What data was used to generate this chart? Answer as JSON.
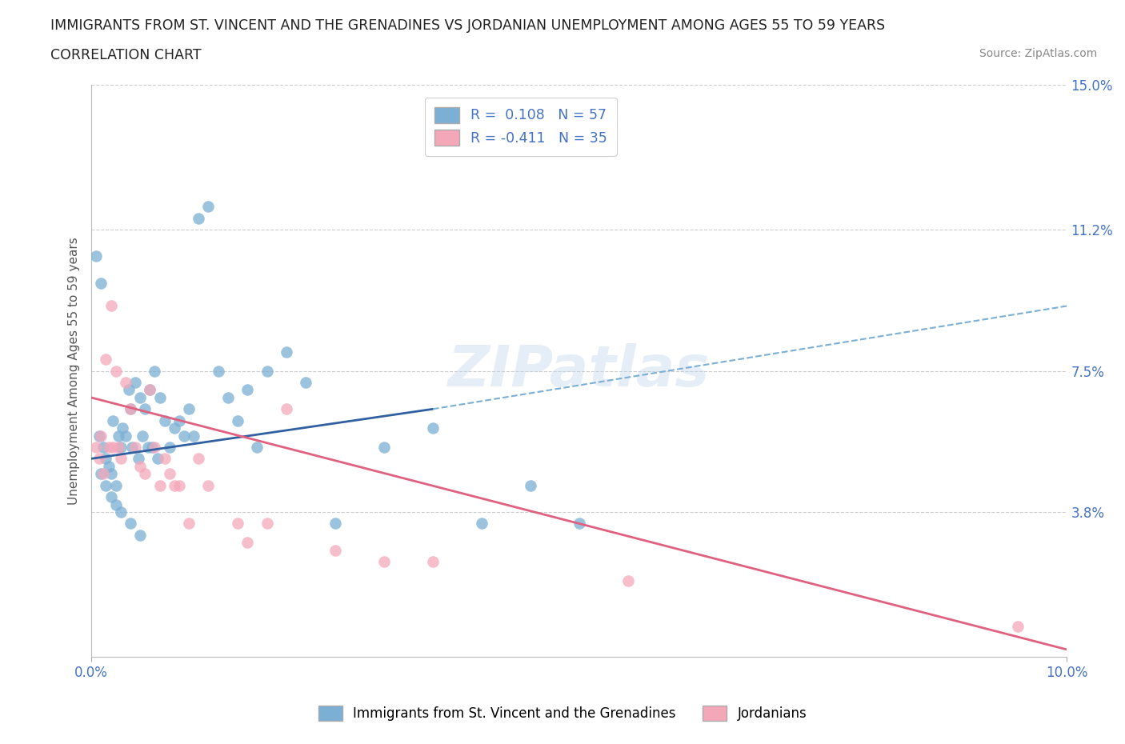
{
  "title_line1": "IMMIGRANTS FROM ST. VINCENT AND THE GRENADINES VS JORDANIAN UNEMPLOYMENT AMONG AGES 55 TO 59 YEARS",
  "title_line2": "CORRELATION CHART",
  "source": "Source: ZipAtlas.com",
  "ylabel_ticks": [
    0.0,
    3.8,
    7.5,
    11.2,
    15.0
  ],
  "ylabel_labels": [
    "",
    "3.8%",
    "7.5%",
    "11.2%",
    "15.0%"
  ],
  "xmin": 0.0,
  "xmax": 10.0,
  "ymin": 0.0,
  "ymax": 15.0,
  "blue_color": "#7BAFD4",
  "blue_line_color": "#3060A0",
  "pink_color": "#F4A7B9",
  "pink_line_color": "#E06080",
  "blue_label": "Immigrants from St. Vincent and the Grenadines",
  "pink_label": "Jordanians",
  "legend_r_blue": "R =  0.108",
  "legend_n_blue": "N = 57",
  "legend_r_pink": "R = -0.411",
  "legend_n_pink": "N = 35",
  "watermark": "ZIPatlas",
  "blue_scatter_x": [
    0.05,
    0.08,
    0.1,
    0.12,
    0.15,
    0.18,
    0.2,
    0.22,
    0.25,
    0.28,
    0.3,
    0.32,
    0.35,
    0.38,
    0.4,
    0.42,
    0.45,
    0.48,
    0.5,
    0.52,
    0.55,
    0.58,
    0.6,
    0.62,
    0.65,
    0.68,
    0.7,
    0.75,
    0.8,
    0.85,
    0.9,
    0.95,
    1.0,
    1.05,
    1.1,
    1.2,
    1.3,
    1.4,
    1.5,
    1.6,
    1.7,
    1.8,
    2.0,
    2.2,
    2.5,
    3.0,
    3.5,
    4.0,
    4.5,
    5.0,
    0.1,
    0.15,
    0.2,
    0.25,
    0.3,
    0.4,
    0.5
  ],
  "blue_scatter_y": [
    10.5,
    5.8,
    9.8,
    5.5,
    5.2,
    5.0,
    4.8,
    6.2,
    4.5,
    5.8,
    5.5,
    6.0,
    5.8,
    7.0,
    6.5,
    5.5,
    7.2,
    5.2,
    6.8,
    5.8,
    6.5,
    5.5,
    7.0,
    5.5,
    7.5,
    5.2,
    6.8,
    6.2,
    5.5,
    6.0,
    6.2,
    5.8,
    6.5,
    5.8,
    11.5,
    11.8,
    7.5,
    6.8,
    6.2,
    7.0,
    5.5,
    7.5,
    8.0,
    7.2,
    3.5,
    5.5,
    6.0,
    3.5,
    4.5,
    3.5,
    4.8,
    4.5,
    4.2,
    4.0,
    3.8,
    3.5,
    3.2
  ],
  "pink_scatter_x": [
    0.05,
    0.08,
    0.1,
    0.12,
    0.15,
    0.18,
    0.2,
    0.22,
    0.25,
    0.28,
    0.3,
    0.35,
    0.4,
    0.45,
    0.5,
    0.55,
    0.6,
    0.65,
    0.7,
    0.75,
    0.8,
    0.85,
    0.9,
    1.0,
    1.1,
    1.2,
    1.5,
    1.6,
    1.8,
    2.0,
    2.5,
    3.0,
    3.5,
    5.5,
    9.5
  ],
  "pink_scatter_y": [
    5.5,
    5.2,
    5.8,
    4.8,
    7.8,
    5.5,
    9.2,
    5.5,
    7.5,
    5.5,
    5.2,
    7.2,
    6.5,
    5.5,
    5.0,
    4.8,
    7.0,
    5.5,
    4.5,
    5.2,
    4.8,
    4.5,
    4.5,
    3.5,
    5.2,
    4.5,
    3.5,
    3.0,
    3.5,
    6.5,
    2.8,
    2.5,
    2.5,
    2.0,
    0.8
  ],
  "blue_line_x0": 0.0,
  "blue_line_y0": 5.2,
  "blue_line_x1": 3.5,
  "blue_line_y1": 6.5,
  "blue_dash_x0": 3.5,
  "blue_dash_y0": 6.5,
  "blue_dash_x1": 10.0,
  "blue_dash_y1": 9.2,
  "pink_line_x0": 0.0,
  "pink_line_y0": 6.8,
  "pink_line_x1": 10.0,
  "pink_line_y1": 0.2
}
